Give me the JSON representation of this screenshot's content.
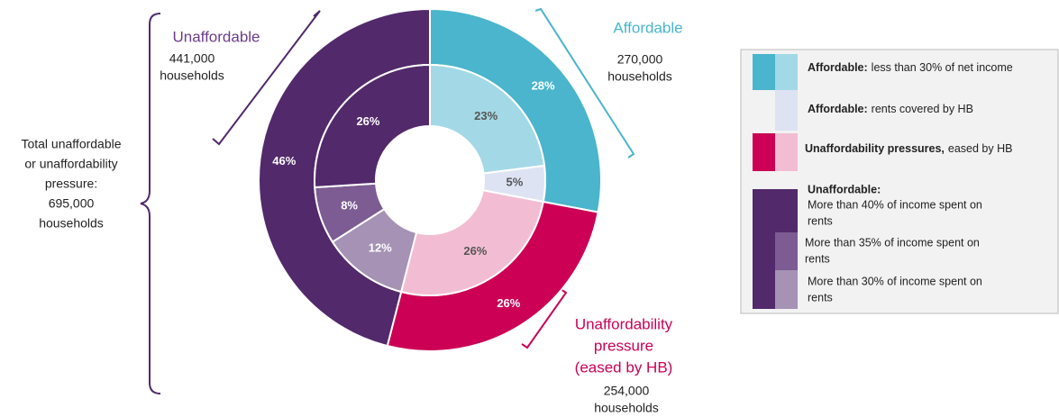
{
  "chart_data": {
    "type": "donut",
    "series": [
      {
        "values": [
          28,
          26,
          46
        ],
        "value_labels": [
          "28%",
          "26%",
          "46%"
        ],
        "colors": [
          "#4ab5cc",
          "#cc0055",
          "#52296b"
        ]
      },
      {
        "values": [
          23,
          5,
          26,
          12,
          8,
          26
        ],
        "value_labels": [
          "23%",
          "5%",
          "26%",
          "12%",
          "8%",
          "26%"
        ],
        "colors": [
          "#a3d9e6",
          "#dde3f2",
          "#f2bdd3",
          "#a592b5",
          "#7c5c92",
          "#52296b"
        ]
      }
    ],
    "annotations": [
      {
        "title": [
          "Unaffordable"
        ],
        "lines": [
          "441,000",
          "households"
        ]
      },
      {
        "title": [
          "Affordable"
        ],
        "lines": [
          "270,000",
          "households"
        ]
      },
      {
        "title": [
          "Unaffordability",
          "pressure",
          "(eased by HB)"
        ],
        "lines": [
          "254,000",
          "households"
        ]
      },
      {
        "lines": [
          "Total unaffordable",
          "or unaffordability",
          "pressure:",
          "695,000",
          "households"
        ]
      }
    ],
    "legend": [
      {
        "bold": "Affordable:",
        "text": "less than 30% of net income"
      },
      {
        "bold": "Affordable:",
        "text": "rents covered by HB"
      },
      {
        "bold": "Unaffordability pressures,",
        "text": "eased by HB"
      },
      {
        "bold": "Unaffordable:",
        "items": [
          [
            "More than 40% of income spent on",
            "rents"
          ],
          [
            "More than 35% of income spent on",
            "rents"
          ],
          [
            "More than 30% of income spent on",
            "rents"
          ]
        ]
      }
    ]
  }
}
